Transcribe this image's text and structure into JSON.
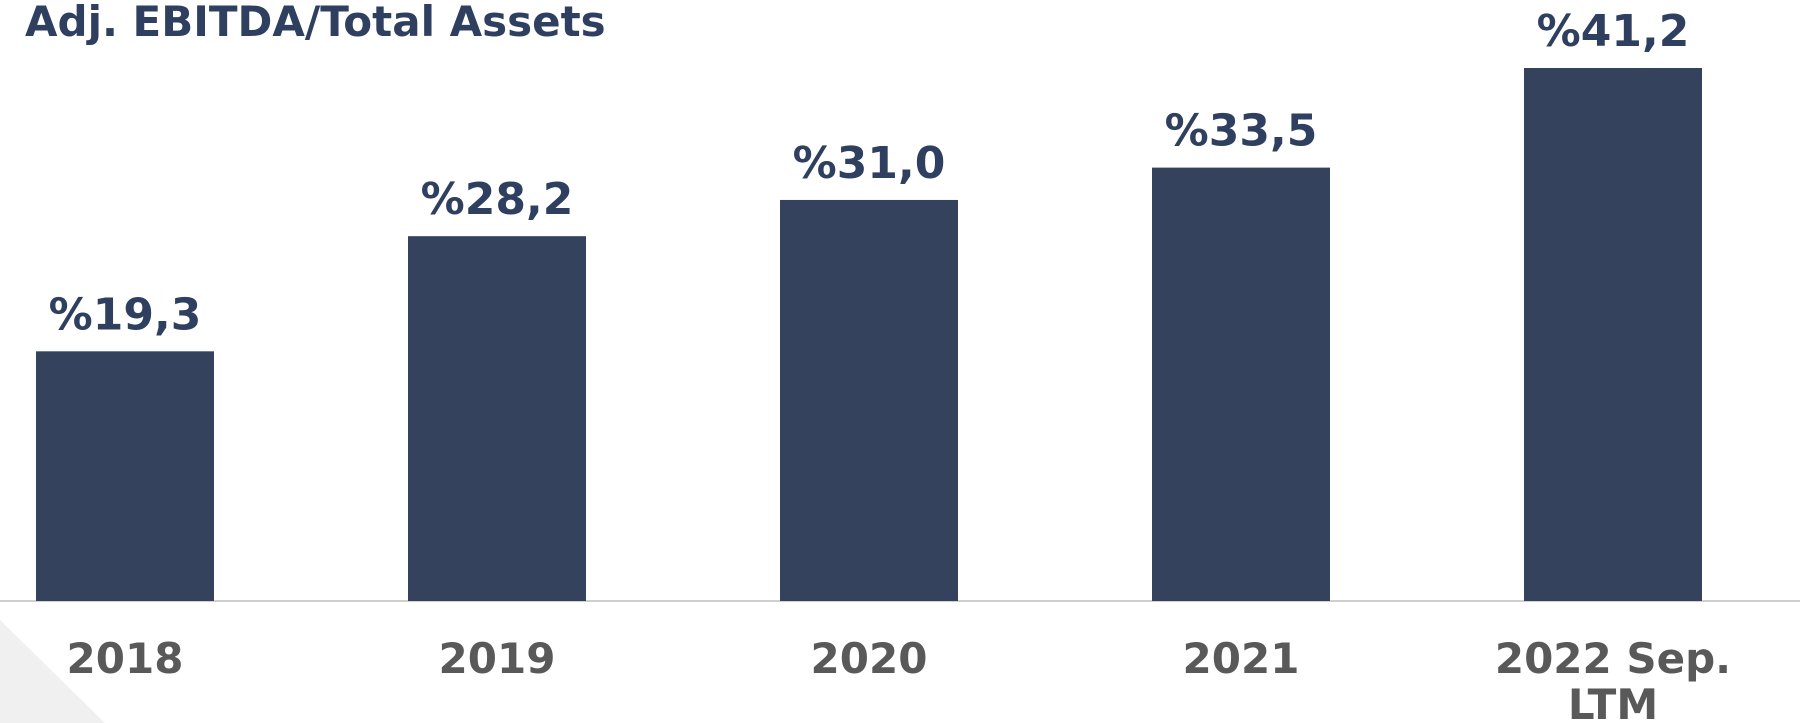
{
  "chart_data": {
    "type": "bar",
    "title": "Adj. EBITDA/Total Assets",
    "categories": [
      "2018",
      "2019",
      "2020",
      "2021",
      "2022 Sep. LTM"
    ],
    "values": [
      19.3,
      28.2,
      31.0,
      33.5,
      41.2
    ],
    "value_labels": [
      "%19,3",
      "%28,2",
      "%31,0",
      "%33,5",
      "%41,2"
    ],
    "color": "#34425e"
  }
}
